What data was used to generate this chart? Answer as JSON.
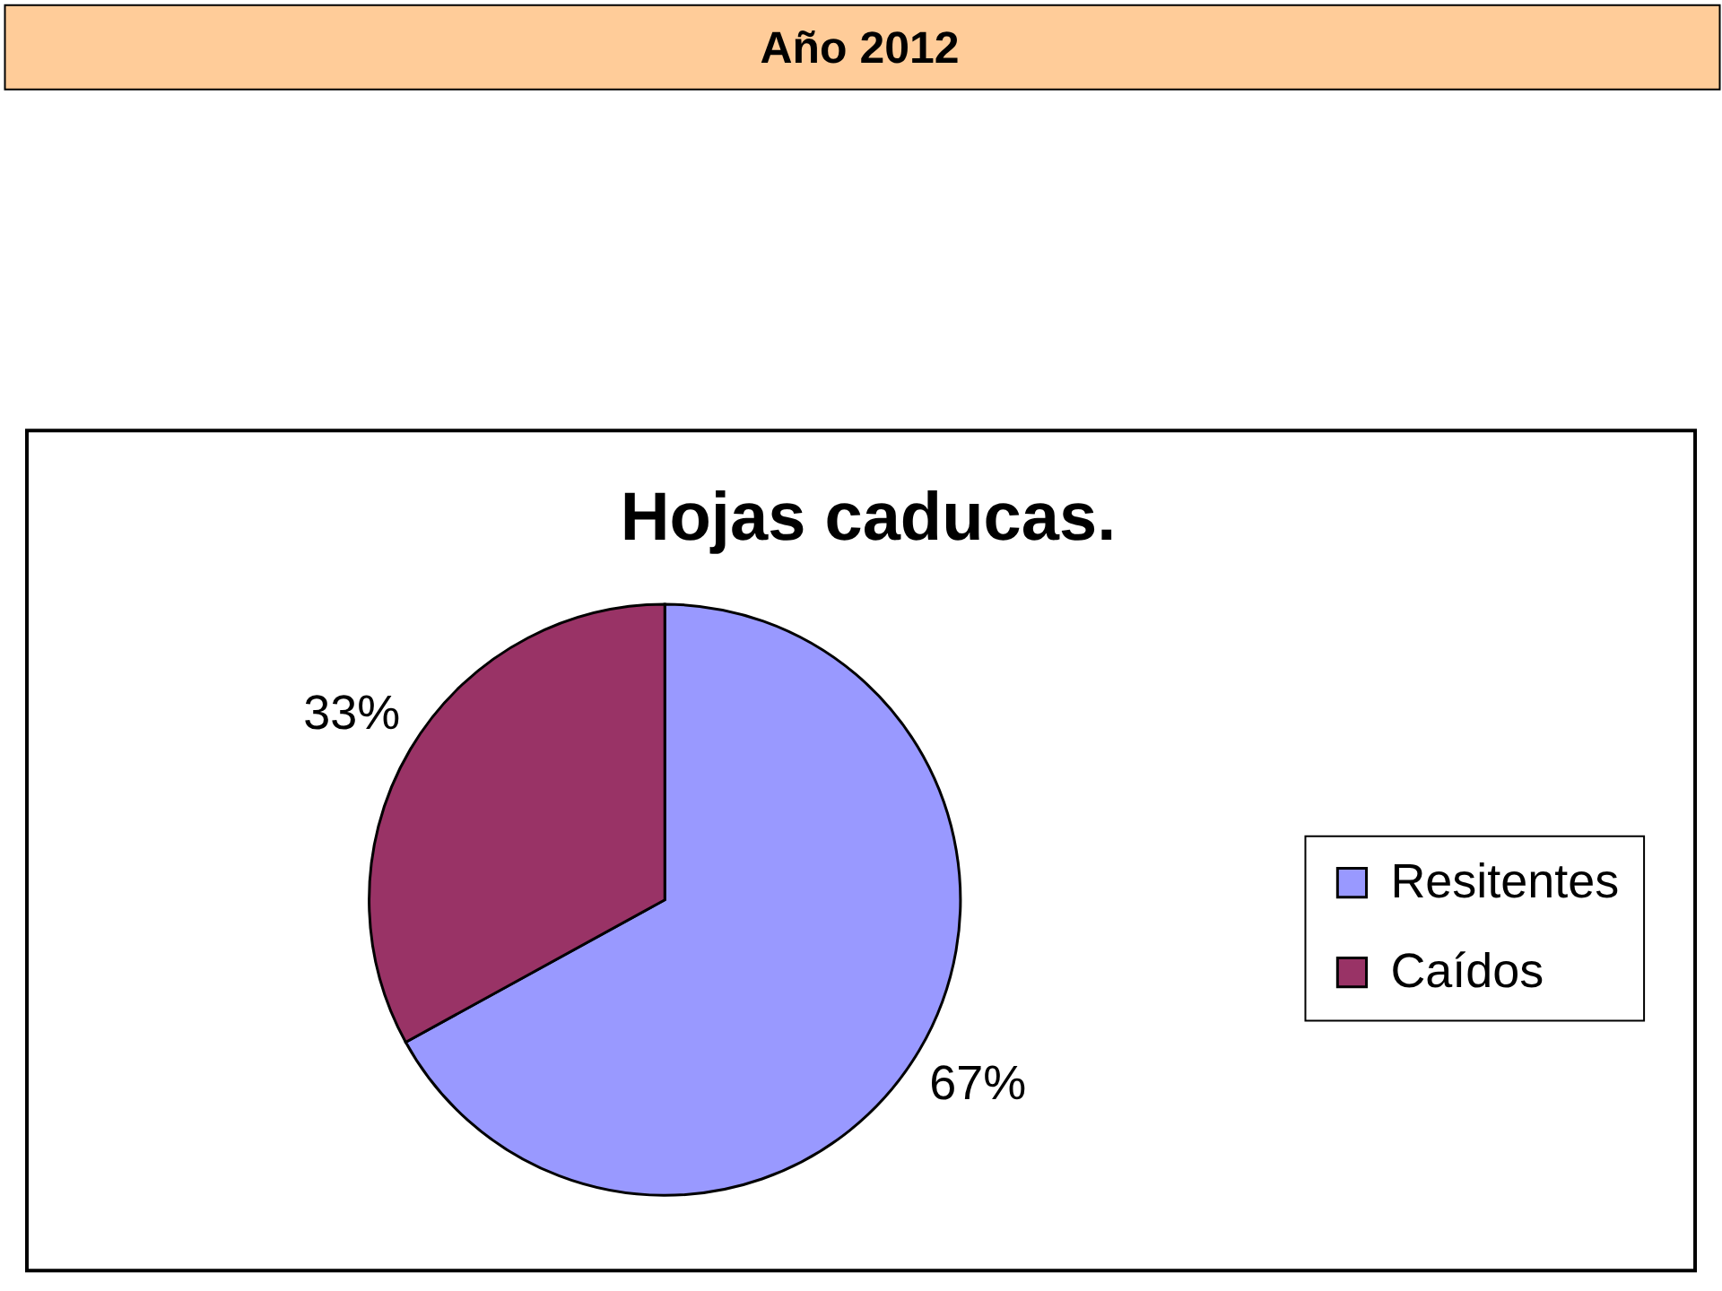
{
  "chart_data": {
    "type": "pie",
    "title": "Hojas caducas.",
    "annotations": [
      "Año 2012"
    ],
    "categories": [
      "Resitentes",
      "Caídos"
    ],
    "values": [
      67,
      33
    ],
    "colors": [
      "#9999ff",
      "#993366"
    ],
    "value_labels": [
      "67%",
      "33%"
    ],
    "legend": "right"
  }
}
